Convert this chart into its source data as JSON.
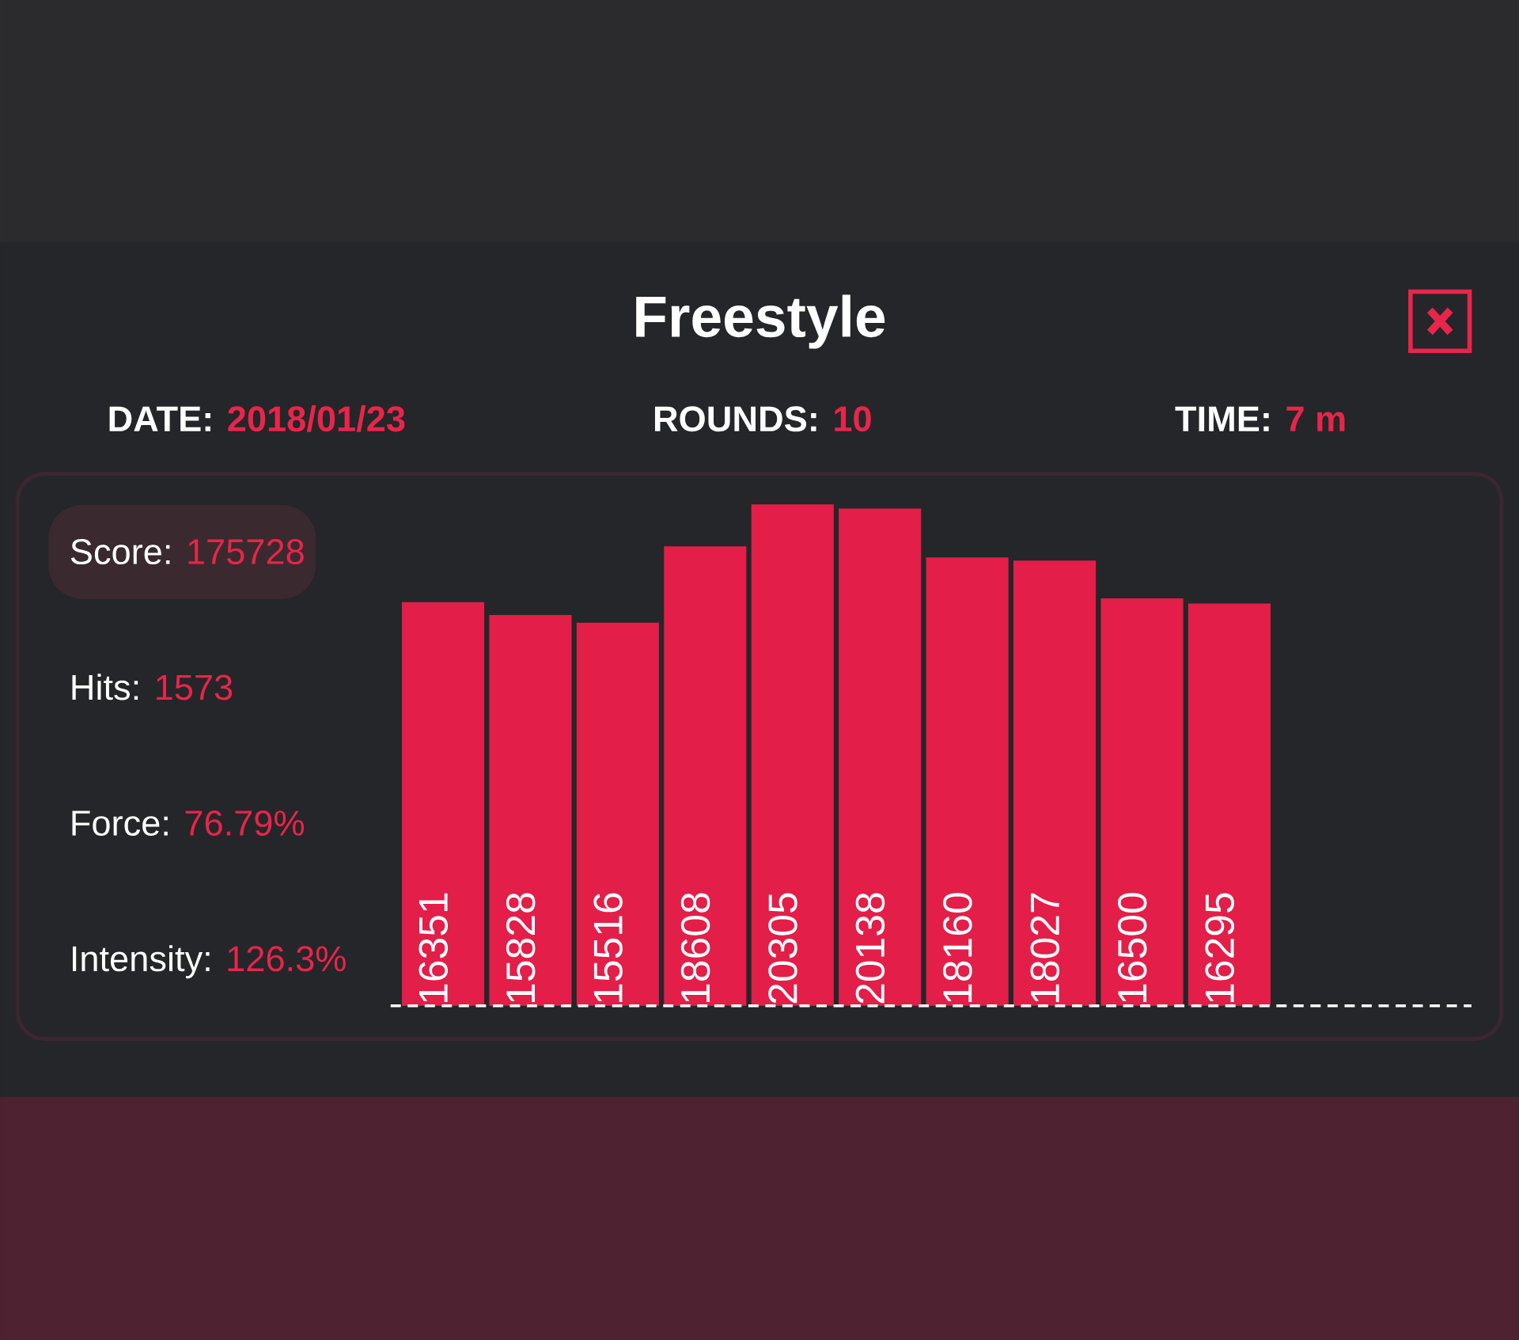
{
  "chart_data": {
    "type": "bar",
    "title": "Freestyle",
    "categories": [
      null,
      null,
      null,
      null,
      null,
      null,
      null,
      null,
      null,
      null
    ],
    "values": [
      16351,
      15828,
      15516,
      18608,
      20305,
      20138,
      18160,
      18027,
      16500,
      16295
    ],
    "color": "#e31e48",
    "data_labels": true,
    "ref_lines": [
      {
        "axis": "y",
        "value": 0,
        "line_style": "dashed",
        "color": "#ffffff"
      }
    ],
    "annotations": [
      "DATE:",
      "2018/01/23",
      "ROUNDS:",
      "10",
      "TIME:",
      "7 m",
      "Score:",
      "175728",
      "Hits:",
      "1573",
      "Force:",
      "76.79%",
      "Intensity:",
      "126.3%"
    ]
  }
}
